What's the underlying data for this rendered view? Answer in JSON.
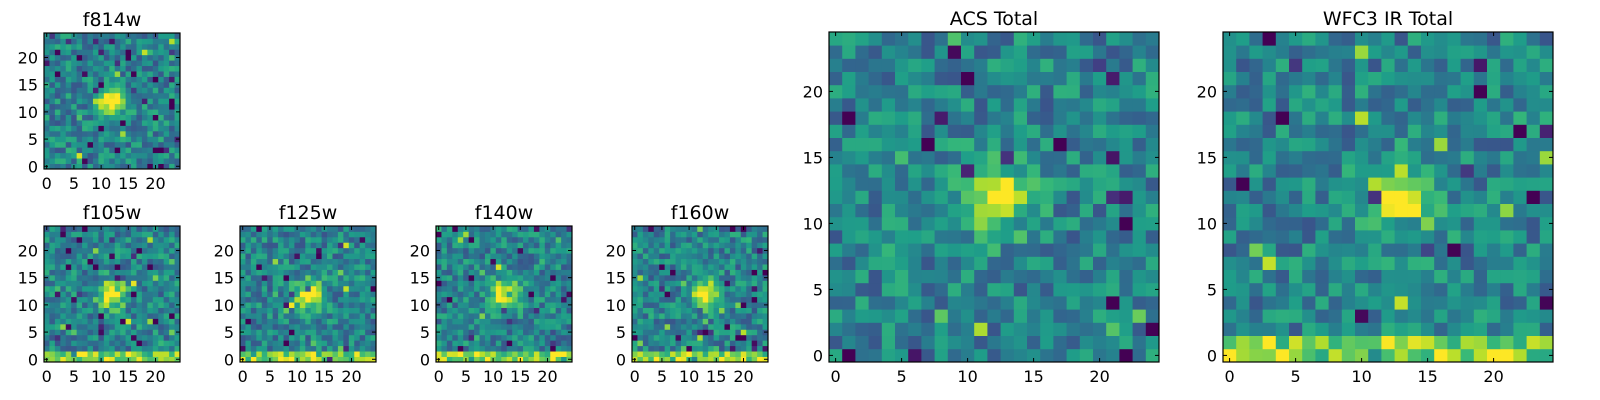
{
  "figure": {
    "description_free": true
  },
  "chart_data": [
    {
      "type": "heatmap",
      "title": "f814w",
      "xlim": [
        0,
        24
      ],
      "ylim": [
        0,
        24
      ],
      "xticks": [
        0,
        5,
        10,
        15,
        20
      ],
      "yticks": [
        0,
        5,
        10,
        15,
        20
      ],
      "grid": false,
      "colormap": "viridis",
      "features": {
        "blob": [
          12,
          12
        ],
        "bottom_band": false
      }
    },
    {
      "type": "heatmap",
      "title": "f105w",
      "xlim": [
        0,
        24
      ],
      "ylim": [
        0,
        24
      ],
      "xticks": [
        0,
        5,
        10,
        15,
        20
      ],
      "yticks": [
        0,
        5,
        10,
        15,
        20
      ],
      "grid": false,
      "colormap": "viridis",
      "features": {
        "blob": [
          12,
          12
        ],
        "bottom_band": true
      }
    },
    {
      "type": "heatmap",
      "title": "f125w",
      "xlim": [
        0,
        24
      ],
      "ylim": [
        0,
        24
      ],
      "xticks": [
        0,
        5,
        10,
        15,
        20
      ],
      "yticks": [
        0,
        5,
        10,
        15,
        20
      ],
      "grid": false,
      "colormap": "viridis",
      "features": {
        "blob": [
          12,
          12
        ],
        "bottom_band": true
      }
    },
    {
      "type": "heatmap",
      "title": "f140w",
      "xlim": [
        0,
        24
      ],
      "ylim": [
        0,
        24
      ],
      "xticks": [
        0,
        5,
        10,
        15,
        20
      ],
      "yticks": [
        0,
        5,
        10,
        15,
        20
      ],
      "grid": false,
      "colormap": "viridis",
      "features": {
        "blob": [
          12,
          12
        ],
        "bottom_band": true
      }
    },
    {
      "type": "heatmap",
      "title": "f160w",
      "xlim": [
        0,
        24
      ],
      "ylim": [
        0,
        24
      ],
      "xticks": [
        0,
        5,
        10,
        15,
        20
      ],
      "yticks": [
        0,
        5,
        10,
        15,
        20
      ],
      "grid": false,
      "colormap": "viridis",
      "features": {
        "blob": [
          13,
          12
        ],
        "bottom_band": true
      }
    },
    {
      "type": "heatmap",
      "title": "ACS Total",
      "xlim": [
        0,
        24
      ],
      "ylim": [
        0,
        24
      ],
      "xticks": [
        0,
        5,
        10,
        15,
        20
      ],
      "yticks": [
        0,
        5,
        10,
        15,
        20
      ],
      "grid": false,
      "colormap": "viridis",
      "features": {
        "blob": [
          12,
          12
        ],
        "bottom_band": false
      }
    },
    {
      "type": "heatmap",
      "title": "WFC3 IR Total",
      "xlim": [
        0,
        24
      ],
      "ylim": [
        0,
        24
      ],
      "xticks": [
        0,
        5,
        10,
        15,
        20
      ],
      "yticks": [
        0,
        5,
        10,
        15,
        20
      ],
      "grid": false,
      "colormap": "viridis",
      "features": {
        "blob": [
          13,
          12
        ],
        "bottom_band": true
      }
    }
  ]
}
